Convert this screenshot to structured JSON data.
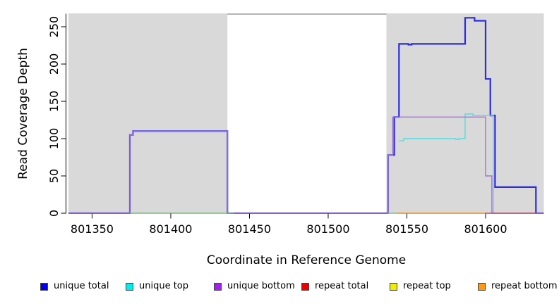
{
  "chart_data": {
    "type": "line",
    "title": "",
    "xlabel": "Coordinate in Reference Genome",
    "ylabel": "Read Coverage Depth",
    "xlim": [
      801335,
      801637
    ],
    "ylim": [
      0,
      267
    ],
    "x_ticks": [
      801350,
      801400,
      801450,
      801500,
      801550,
      801600
    ],
    "y_ticks": [
      0,
      50,
      100,
      150,
      200,
      250
    ],
    "grid": false,
    "legend_position": "bottom",
    "shade_color": "#d9d9d9",
    "shaded_regions": [
      {
        "from": 801335,
        "to": 801436
      },
      {
        "from": 801537,
        "to": 801637
      }
    ],
    "series": [
      {
        "name": "unique total",
        "legend_color": "#0000ee",
        "line_color": "#2b2be0",
        "width": 2.2,
        "segments": [
          [
            [
              801335,
              0
            ],
            [
              801374,
              105
            ],
            [
              801376,
              110
            ],
            [
              801436,
              0
            ],
            [
              801538,
              78
            ],
            [
              801542,
              129
            ],
            [
              801545,
              227
            ],
            [
              801551,
              226
            ],
            [
              801553,
              227
            ],
            [
              801587,
              262
            ],
            [
              801593,
              258
            ],
            [
              801600,
              180
            ],
            [
              801603,
              131
            ],
            [
              801606,
              35
            ],
            [
              801632,
              0
            ],
            [
              801637,
              0
            ]
          ]
        ]
      },
      {
        "name": "unique top",
        "legend_color": "#00eeee",
        "line_color": "#55dddd",
        "width": 1.4,
        "segments": [
          [
            [
              801545,
              97
            ],
            [
              801548,
              100
            ],
            [
              801581,
              99
            ],
            [
              801583,
              100
            ],
            [
              801587,
              133
            ],
            [
              801592,
              131
            ],
            [
              801605,
              0
            ]
          ]
        ]
      },
      {
        "name": "unique bottom",
        "legend_color": "#a020f0",
        "line_color": "#a66fd6",
        "width": 1.4,
        "segments": [
          [
            [
              801335,
              0
            ],
            [
              801374,
              105
            ],
            [
              801376,
              110
            ],
            [
              801436,
              0
            ],
            [
              801538,
              78
            ],
            [
              801541,
              129
            ],
            [
              801600,
              50
            ],
            [
              801604,
              0
            ],
            [
              801637,
              0
            ]
          ]
        ]
      },
      {
        "name": "repeat total",
        "legend_color": "#ee0000",
        "line_color": "#cc4466",
        "width": 1.4,
        "segments": [
          [
            [
              801600,
              0
            ],
            [
              801632,
              0
            ]
          ]
        ]
      },
      {
        "name": "repeat top",
        "legend_color": "#eeee00",
        "line_color": "#6fbf75",
        "width": 1.4,
        "segments": [
          [
            [
              801374,
              0
            ],
            [
              801440,
              0
            ]
          ],
          [
            [
              801538,
              0
            ],
            [
              801544,
              0
            ]
          ]
        ]
      },
      {
        "name": "repeat bottom",
        "legend_color": "#ff9914",
        "line_color": "#ff9914",
        "width": 1.8,
        "segments": [
          [
            [
              801544,
              0
            ],
            [
              801600,
              0
            ]
          ]
        ]
      }
    ]
  }
}
